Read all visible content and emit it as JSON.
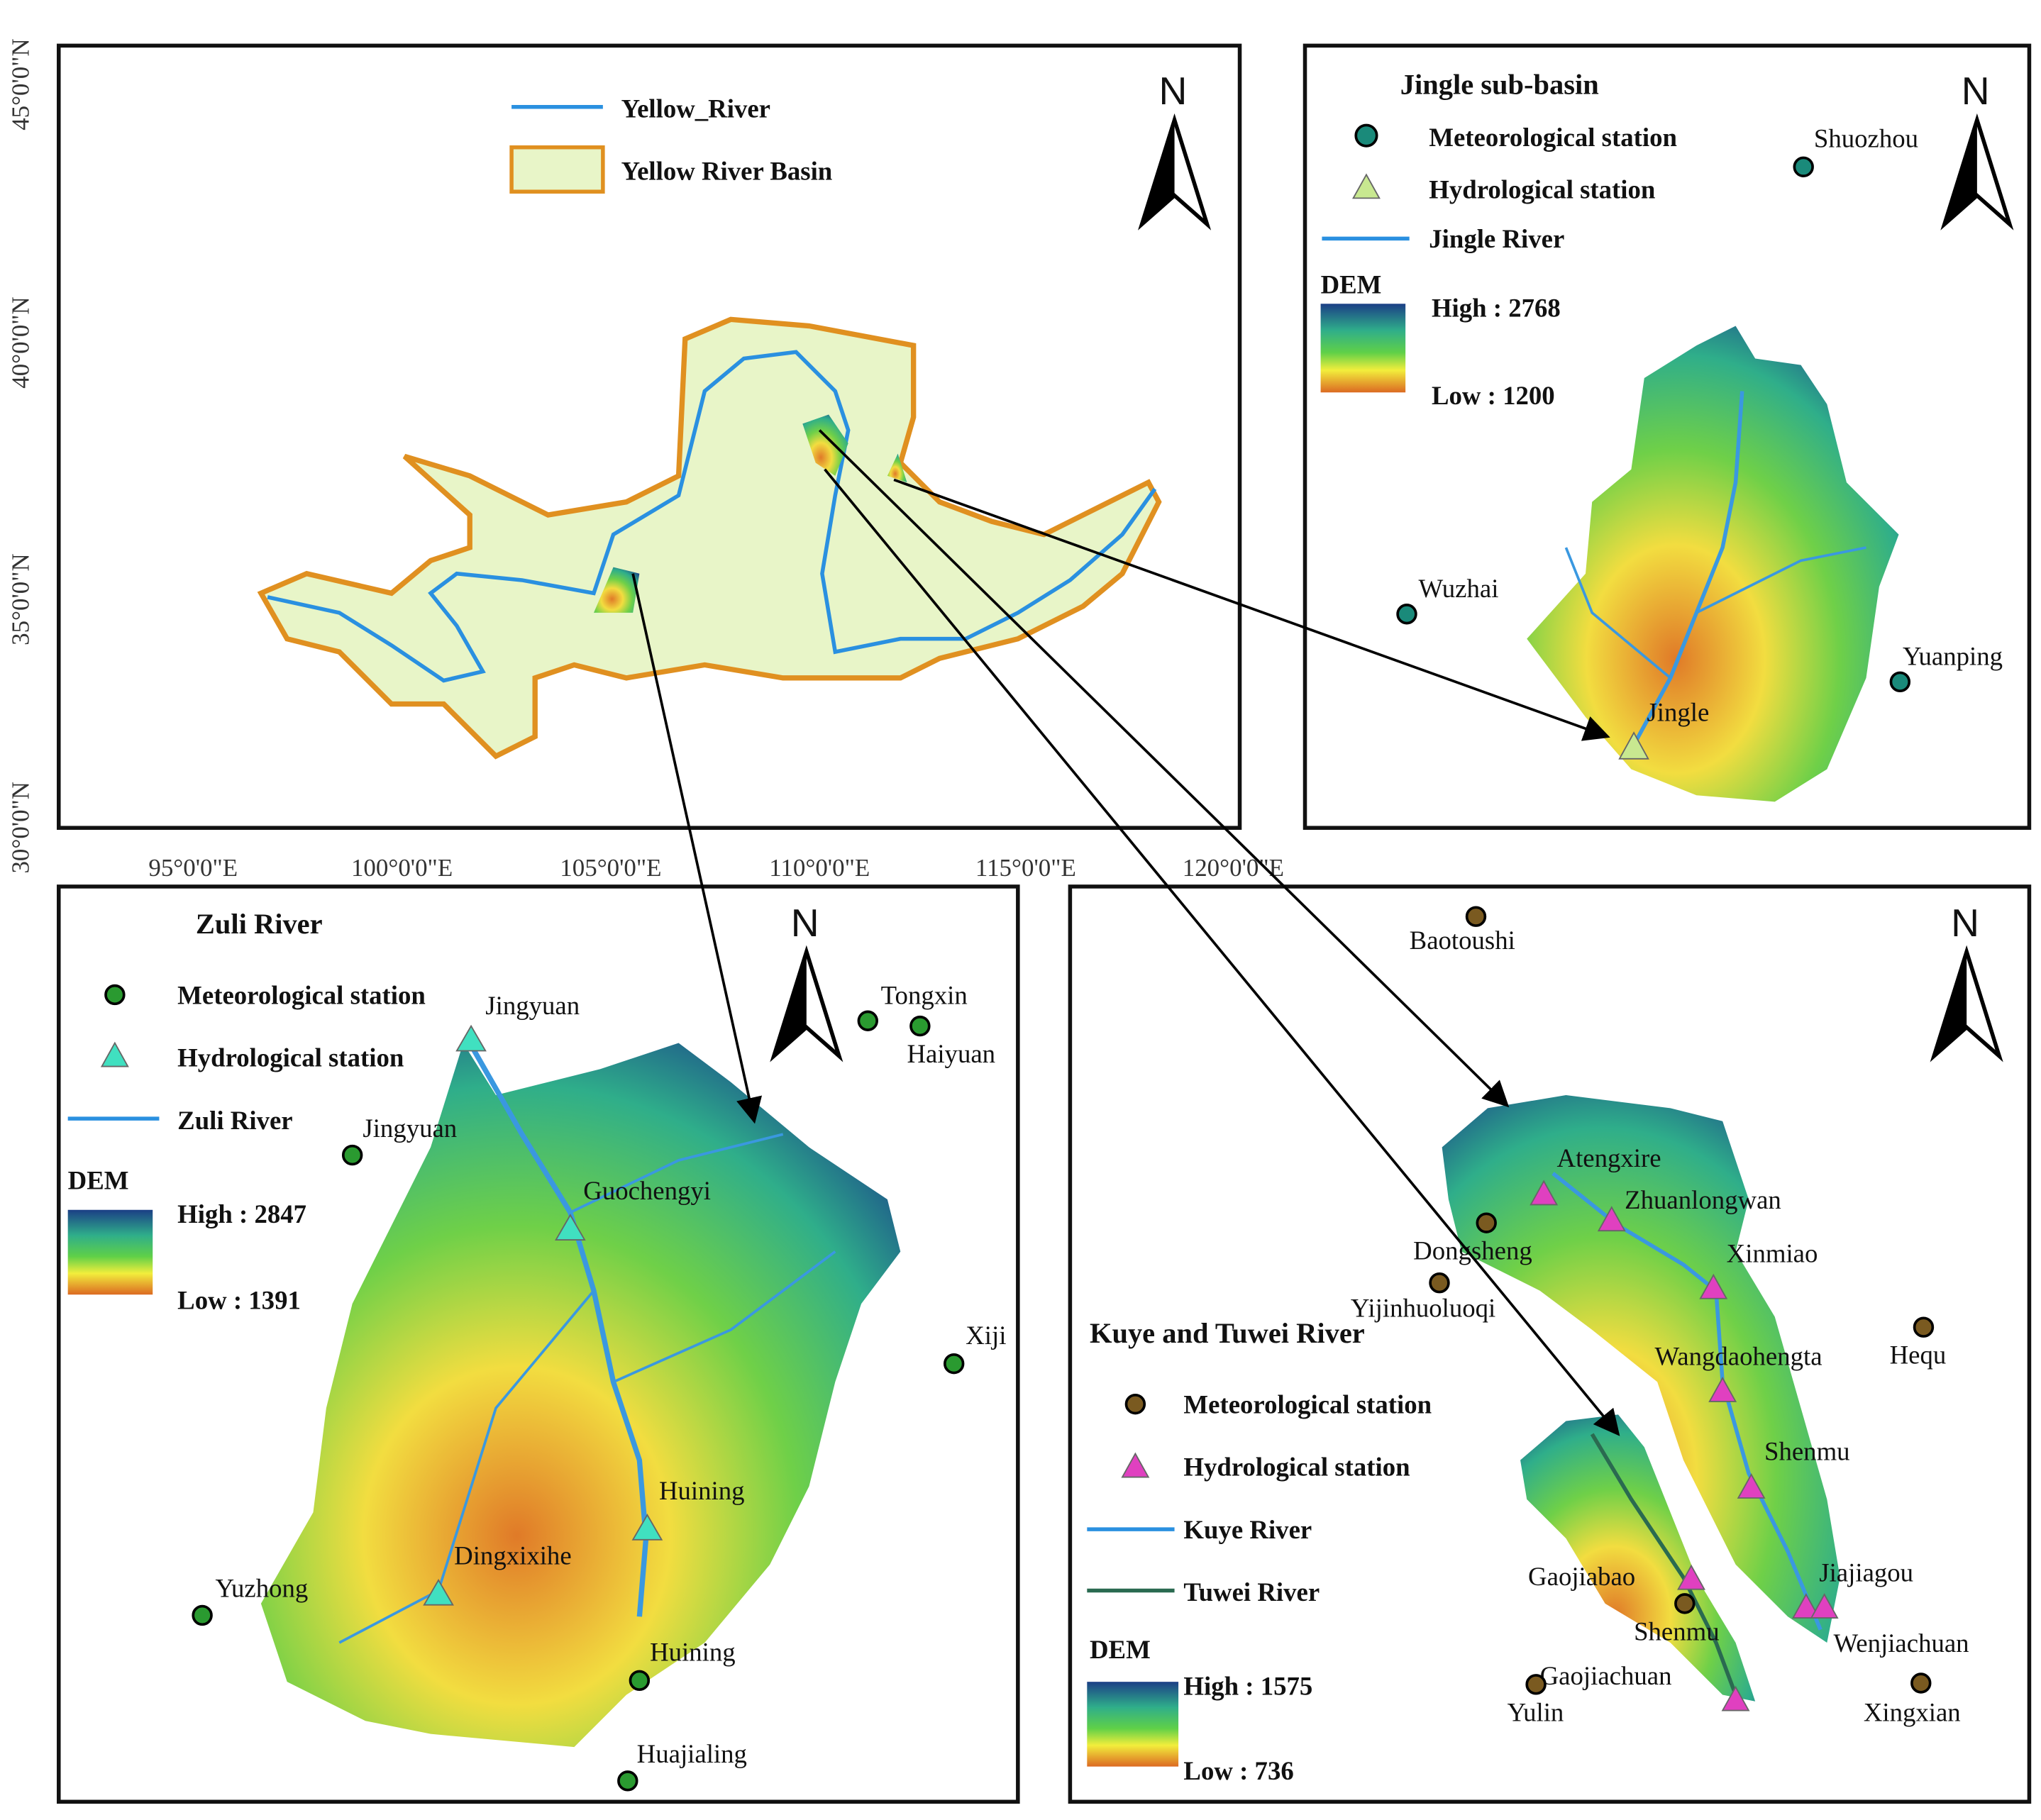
{
  "overview": {
    "legend": [
      "Yellow_River",
      "Yellow River Basin"
    ],
    "north": "N",
    "lat_labels": [
      "45°0'0\"N",
      "40°0'0\"N",
      "35°0'0\"N",
      "30°0'0\"N"
    ],
    "lon_labels": [
      "95°0'0\"E",
      "100°0'0\"E",
      "105°0'0\"E",
      "110°0'0\"E",
      "115°0'0\"E",
      "120°0'0\"E"
    ]
  },
  "jingle": {
    "title": "Jingle sub-basin",
    "legend": [
      "Meteorological station",
      "Hydrological station",
      "Jingle River"
    ],
    "dem_title": "DEM",
    "dem_high": "High : 2768",
    "dem_low": "Low : 1200",
    "north": "N",
    "places": [
      "Shuozhou",
      "Wuzhai",
      "Yuanping",
      "Jingle"
    ]
  },
  "zuli": {
    "title": "Zuli River",
    "legend": [
      "Meteorological station",
      "Hydrological station",
      "Zuli River"
    ],
    "dem_title": "DEM",
    "dem_high": "High : 2847",
    "dem_low": "Low : 1391",
    "north": "N",
    "places": [
      "Jingyuan",
      "Tongxin",
      "Haiyuan",
      "Jingyuan",
      "Guochengyi",
      "Xiji",
      "Huining",
      "Dingxixihe",
      "Yuzhong",
      "Huining",
      "Huajialing"
    ]
  },
  "kuye": {
    "title": "Kuye and Tuwei River",
    "legend": [
      "Meteorological station",
      "Hydrological station",
      "Kuye River",
      "Tuwei River"
    ],
    "dem_title": "DEM",
    "dem_high": "High : 1575",
    "dem_low": "Low : 736",
    "north": "N",
    "places": [
      "Baotoushi",
      "Atengxire",
      "Zhuanlongwan",
      "Dongsheng",
      "Xinmiao",
      "Yijinhuoluoqi",
      "Hequ",
      "Wangdaohengta",
      "Shenmu",
      "Jiajiagou",
      "Gaojiabao",
      "Shenmu",
      "Wenjiachuan",
      "Gaojiachuan",
      "Yulin",
      "Xingxian"
    ]
  }
}
